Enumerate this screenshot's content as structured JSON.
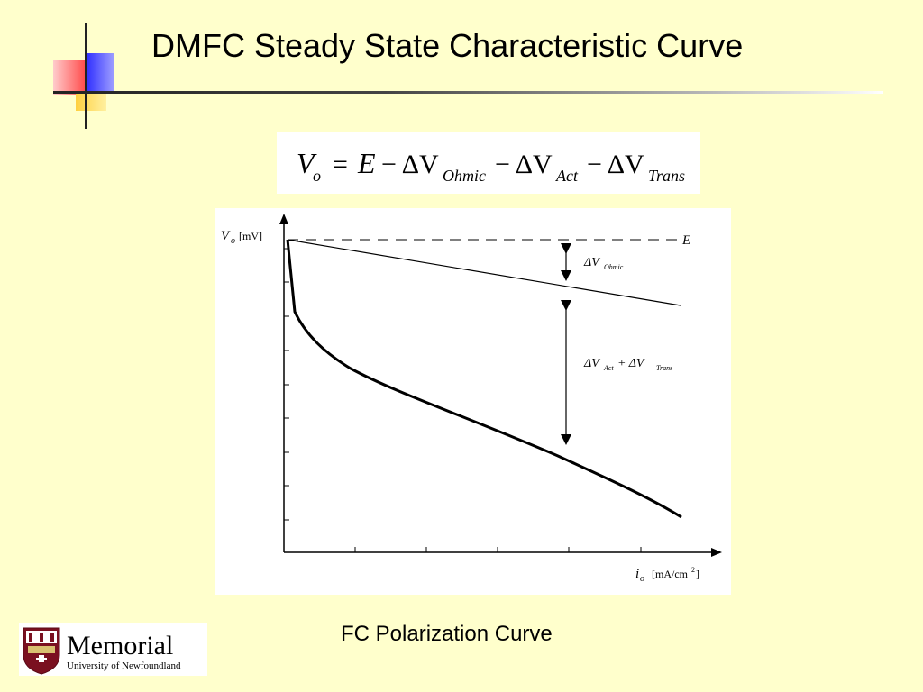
{
  "slide": {
    "title": "DMFC Steady State Characteristic Curve",
    "caption": "FC Polarization Curve"
  },
  "equation": {
    "lhs": "V",
    "lhs_sub": "o",
    "rhs_E": "E",
    "minus_delta": "− ΔV",
    "term1_sub": "Ohmic",
    "term2_sub": "Act",
    "term3_sub": "Trans"
  },
  "diagram": {
    "y_label": "V",
    "y_label_sub": "o",
    "y_unit": "[mV]",
    "x_label": "i",
    "x_label_sub": "o",
    "x_unit": "[mA/cm",
    "x_unit_sup": "2",
    "x_unit_close": "]",
    "e_label": "E",
    "ohmic_label": "ΔV",
    "ohmic_sub": "Ohmic",
    "act_trans_label_a": "ΔV",
    "act_trans_sub_a": "Act",
    "act_trans_plus": " + ΔV",
    "act_trans_sub_b": "Trans"
  },
  "logo": {
    "name": "Memorial",
    "subtitle": "University of Newfoundland"
  },
  "colors": {
    "background": "#FFFFCC",
    "accent_red": "#FF3333",
    "accent_blue": "#1F1FCC",
    "accent_yellow": "#FFCC00",
    "logo_maroon": "#7A1020"
  }
}
